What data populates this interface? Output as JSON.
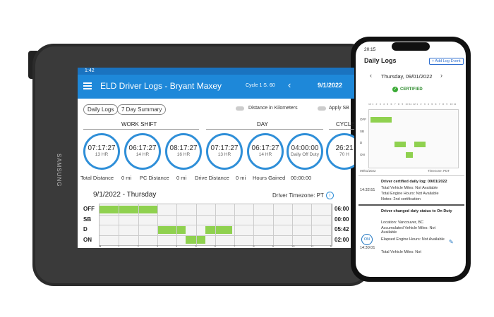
{
  "tablet": {
    "brand": "SAMSUNG",
    "status_time": "1:42",
    "title": "ELD Driver Logs - Bryant Maxey",
    "cycle": "Cycle 1 S. 60",
    "date": "9/1/2022",
    "tabs": [
      "Daily Logs",
      "7 Day Summary"
    ],
    "toggles": [
      "Distance in Kilometers",
      "Apply SB"
    ],
    "sections": [
      "WORK SHIFT",
      "DAY",
      "CYCLE"
    ],
    "clocks": [
      {
        "time": "07:17:27",
        "label": "13 HR"
      },
      {
        "time": "06:17:27",
        "label": "14 HR"
      },
      {
        "time": "08:17:27",
        "label": "16 HR"
      },
      {
        "time": "07:17:27",
        "label": "13 HR"
      },
      {
        "time": "06:17:27",
        "label": "14 HR"
      },
      {
        "time": "04:00:00",
        "label": "Daily Off Duty"
      },
      {
        "time": "26:21",
        "label": "70 H"
      }
    ],
    "stats": [
      {
        "label": "Total Distance",
        "value": "0 mi"
      },
      {
        "label": "PC Distance",
        "value": "0 mi"
      },
      {
        "label": "Drive Distance",
        "value": "0 mi"
      },
      {
        "label": "Hours Gained",
        "value": "00:00:00"
      }
    ],
    "log": {
      "heading": "9/1/2022 - Thursday",
      "timezone": "Driver Timezone: PT",
      "rows": [
        "OFF",
        "SB",
        "D",
        "ON"
      ],
      "totals": [
        "06:00",
        "00:00",
        "05:42",
        "02:00"
      ],
      "hours": [
        "M",
        "1",
        "2",
        "3",
        "4",
        "5",
        "6",
        "7",
        "8",
        "9",
        "10",
        "11",
        "N"
      ]
    }
  },
  "phone": {
    "status_time": "20:15",
    "title": "Daily Logs",
    "add_button": "+ Add Log Event",
    "date": "Thursday, 09/01/2022",
    "certified": "CERTIFIED",
    "chart": {
      "hours": [
        "12",
        "1",
        "2",
        "3",
        "4",
        "5",
        "6",
        "7",
        "8",
        "9",
        "10",
        "11",
        "12",
        "1",
        "2",
        "3",
        "4",
        "5",
        "6",
        "7",
        "8",
        "9",
        "10",
        "11",
        "12"
      ],
      "rows": [
        "OFF",
        "SB",
        "D",
        "ON"
      ],
      "date": "09/01/2022",
      "timezone": "Timezone: PDT"
    },
    "events": [
      {
        "time": "14:32:51",
        "title": "Driver certified daily log: 09/01/2022",
        "lines": [
          "Total Vehicle Miles: Not Available",
          "Total Engine Hours: Not Available",
          "Notes: 2nd certification"
        ]
      },
      {
        "badge": "ON",
        "time": "14:30:01",
        "title": "Driver changed duty status to On Duty",
        "lines": [
          "Location: Vancouver, BC",
          "Accumulated Vehicle Miles: Not Available",
          "Elapsed Engine Hours: Not Available",
          "Total Vehicle Miles: Not"
        ]
      }
    ]
  }
}
